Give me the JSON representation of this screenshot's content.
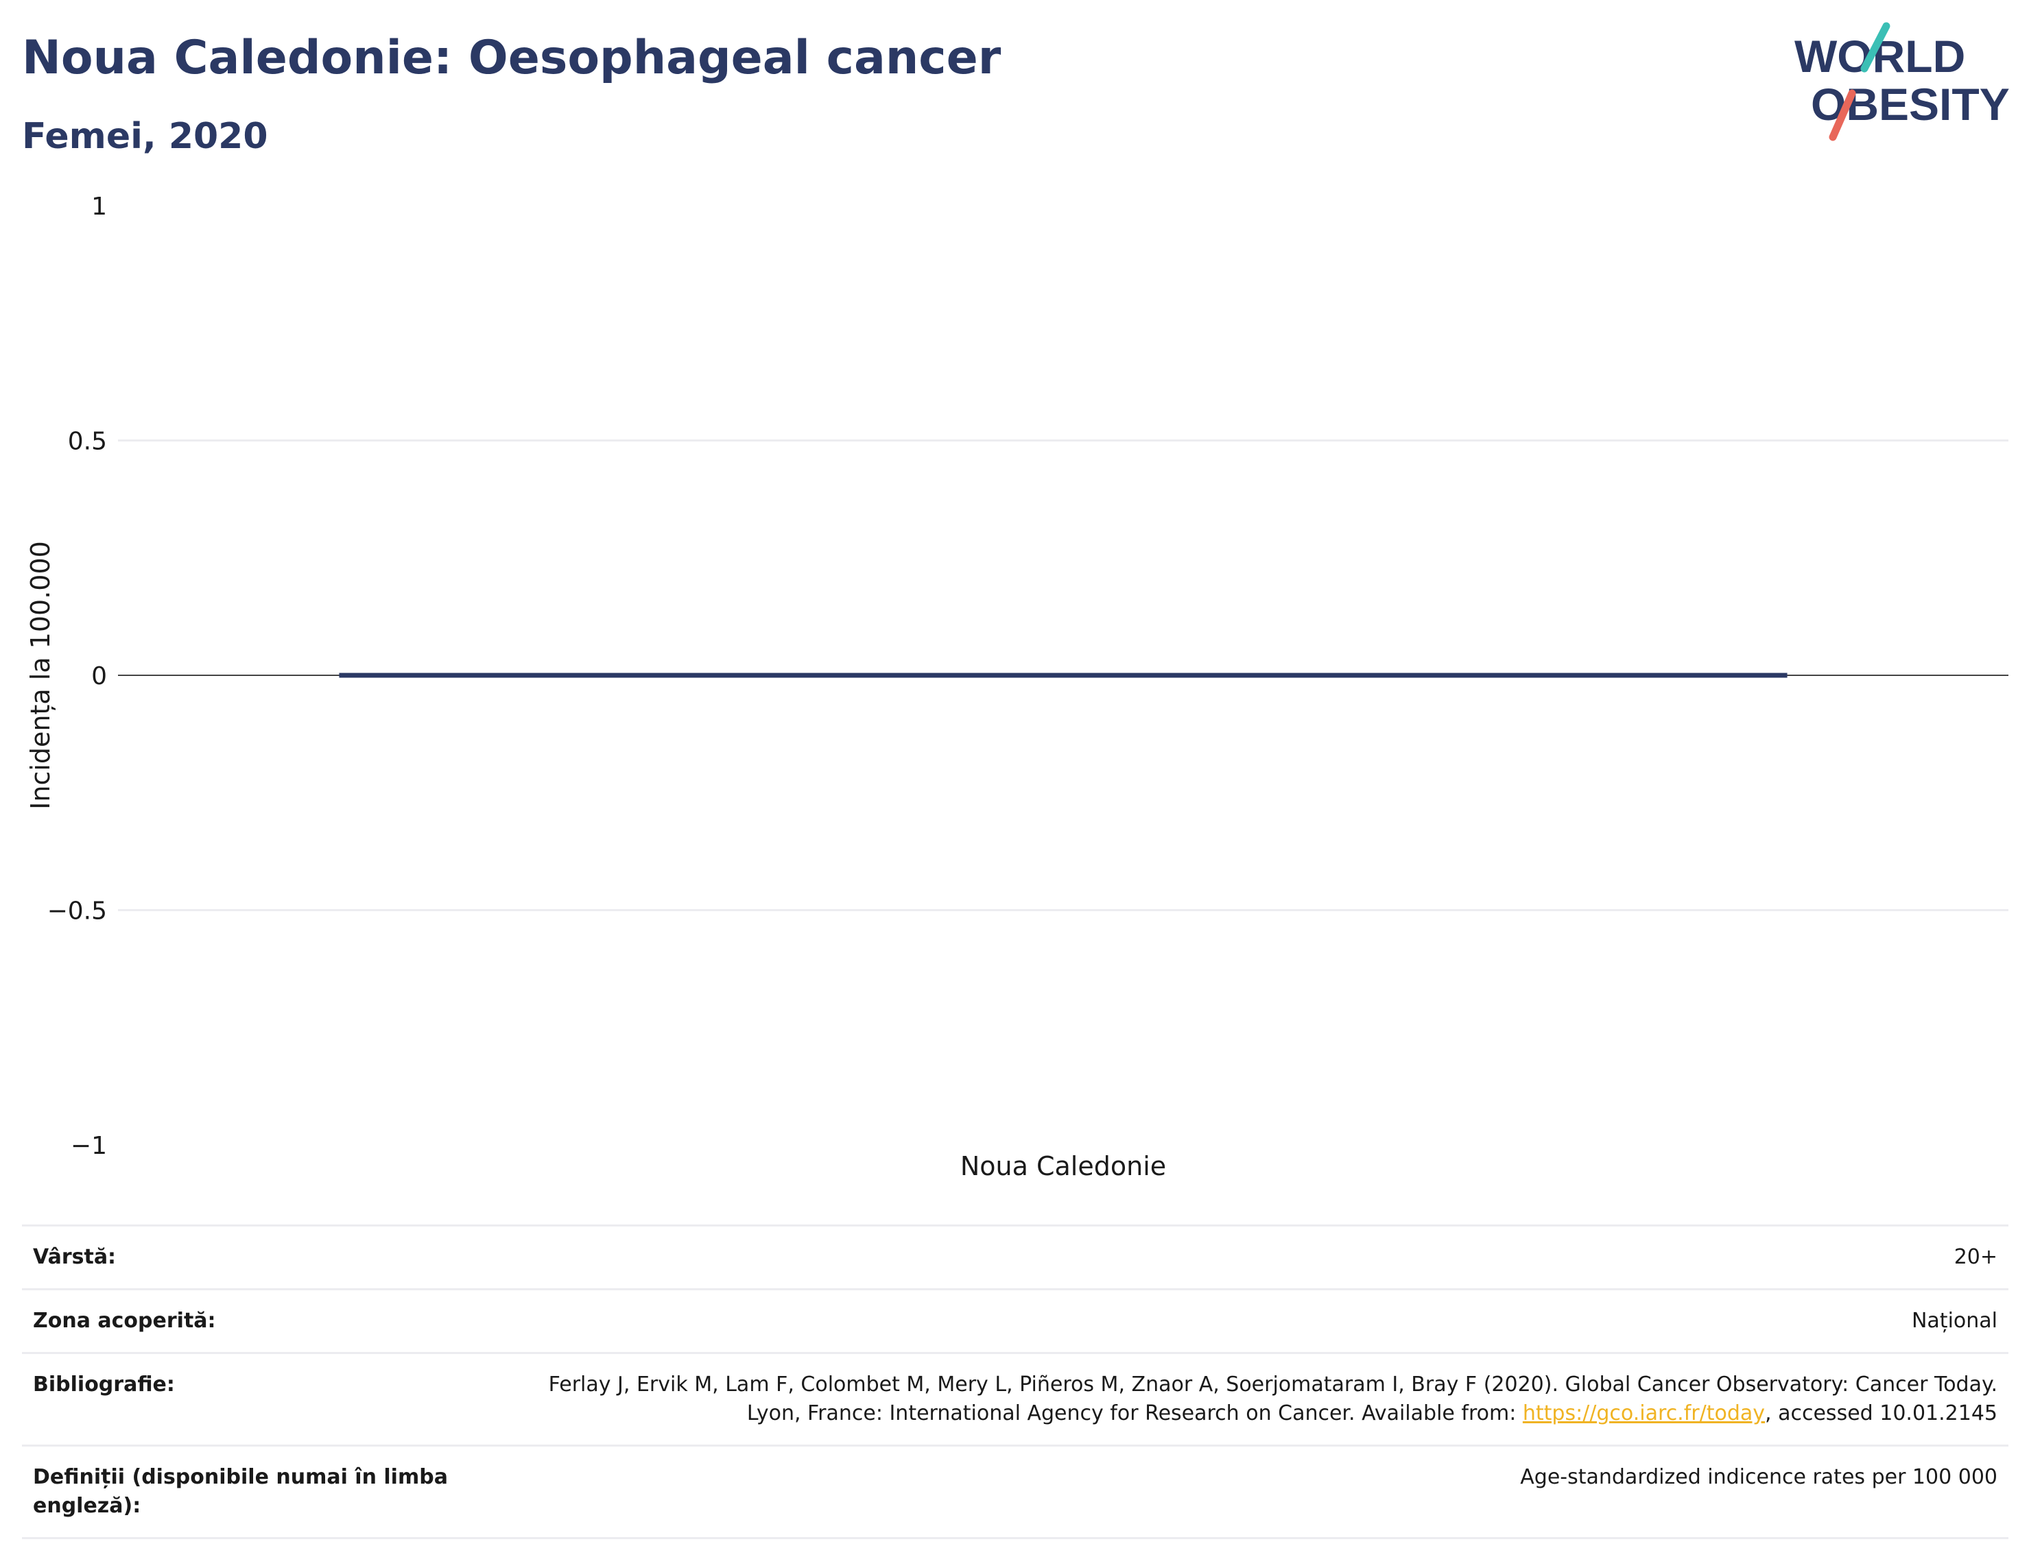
{
  "header": {
    "title": "Noua Caledonie: Oesophageal cancer",
    "subtitle": "Femei, 2020"
  },
  "logo": {
    "line1": "WORLD",
    "line2": "OBESITY",
    "text_color": "#2b3964",
    "slash_top_color": "#3bbfb5",
    "slash_bottom_color": "#e8675a"
  },
  "chart_data": {
    "type": "bar",
    "categories": [
      "Noua Caledonie"
    ],
    "values": [
      0
    ],
    "title": "Noua Caledonie: Oesophageal cancer",
    "subtitle": "Femei, 2020",
    "xlabel": "",
    "ylabel": "Incidența la 100.000",
    "ylim": [
      -1,
      1
    ],
    "yticks": [
      1,
      0.5,
      0,
      -0.5,
      -1
    ],
    "ytick_labels": [
      "1",
      "0.5",
      "0",
      "−0.5",
      "−1"
    ],
    "grid": true,
    "bar_color": "#2b3964"
  },
  "info": [
    {
      "label": "Vârstă:",
      "value": "20+"
    },
    {
      "label": "Zona acoperită:",
      "value": "Național"
    },
    {
      "label": "Bibliografie:",
      "value_before": "Ferlay J, Ervik M, Lam F, Colombet M, Mery L, Piñeros M, Znaor A, Soerjomataram I, Bray F (2020). Global Cancer Observatory: Cancer Today. Lyon, France: International Agency for Research on Cancer. Available from: ",
      "link": "https://gco.iarc.fr/today",
      "value_after": ", accessed 10.01.2145"
    },
    {
      "label": "Definiții (disponibile numai în limba engleză):",
      "value": "Age-standardized indicence rates per 100 000"
    }
  ]
}
